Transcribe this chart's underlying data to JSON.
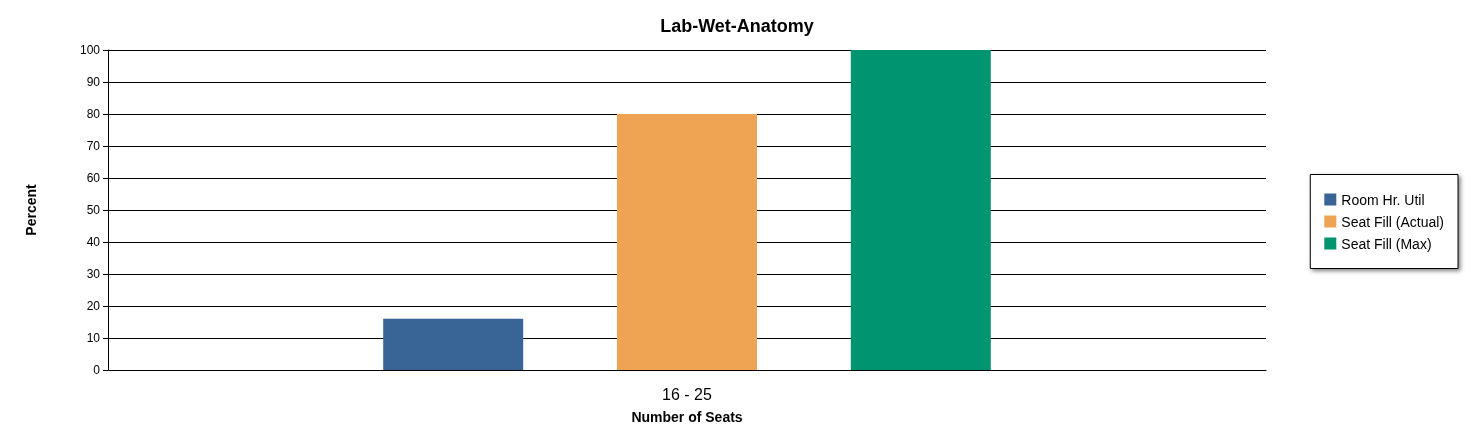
{
  "chart_data": {
    "type": "bar",
    "title": "Lab-Wet-Anatomy",
    "xlabel": "Number of Seats",
    "ylabel": "Percent",
    "categories": [
      "16 - 25"
    ],
    "series": [
      {
        "name": "Room Hr. Util",
        "color": "#386496",
        "values": [
          16
        ]
      },
      {
        "name": "Seat Fill (Actual)",
        "color": "#eea453",
        "values": [
          80
        ]
      },
      {
        "name": "Seat Fill (Max)",
        "color": "#009471",
        "values": [
          100
        ]
      }
    ],
    "ylim": [
      0,
      100
    ],
    "yticks": [
      0,
      10,
      20,
      30,
      40,
      50,
      60,
      70,
      80,
      90,
      100
    ],
    "grid": "y",
    "legend": "right"
  }
}
